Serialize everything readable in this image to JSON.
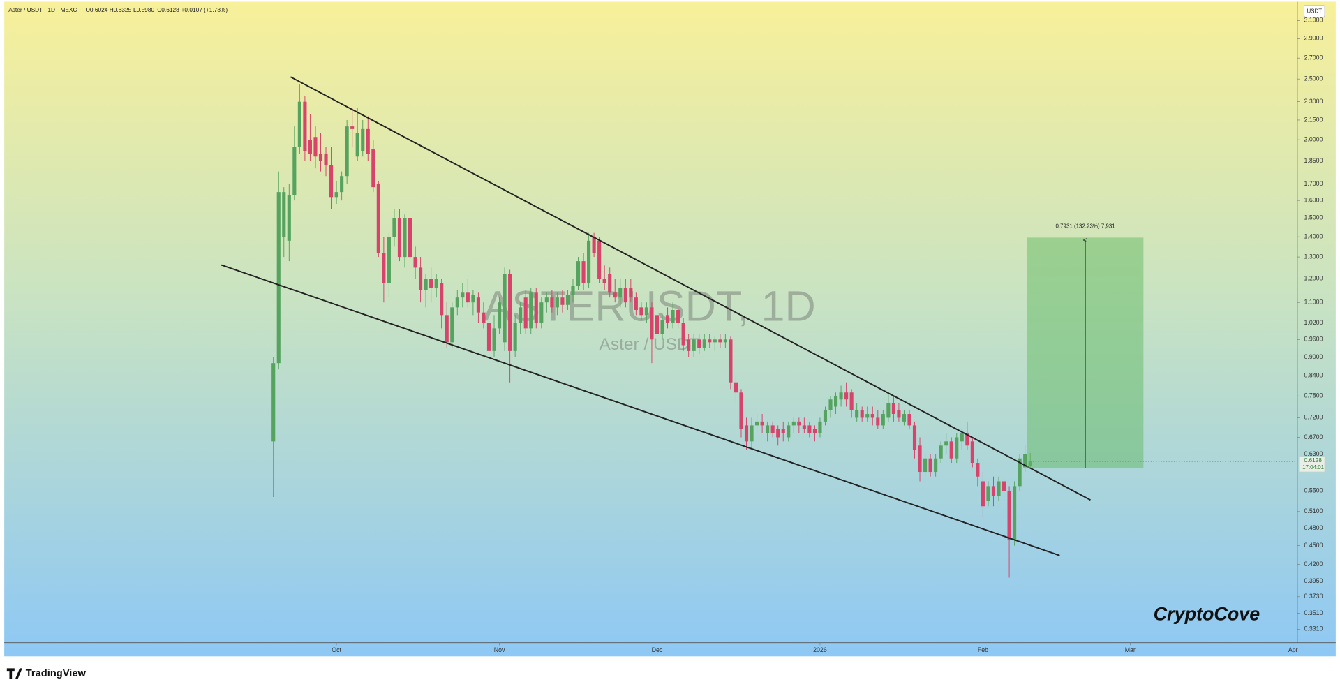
{
  "header": {
    "symbol": "Aster / USDT · 1D · MEXC",
    "open": "O0.6024",
    "high": "H0.6325",
    "low": "L0.5980",
    "close": "C0.6128",
    "change": "+0.0107 (+1.78%)"
  },
  "currency": "USDT",
  "last_price_label": "0.6128",
  "countdown": "17:04:01",
  "measure_label": "0.7931 (132.23%) 7,931",
  "brand": "CryptoCove",
  "footer": "TradingView",
  "chart_data": {
    "type": "candlestick",
    "title": "ASTERUSDT, 1D",
    "subtitle": "Aster / USDT",
    "up_color": "#55a35f",
    "down_color": "#d8436b",
    "log_scale": true,
    "grid": false,
    "xlim": [
      -51.2,
      194.8
    ],
    "xticks": [
      {
        "value": 12,
        "label": "Oct"
      },
      {
        "value": 43,
        "label": "Nov"
      },
      {
        "value": 73,
        "label": "Dec"
      },
      {
        "value": 104,
        "label": "2026"
      },
      {
        "value": 135,
        "label": "Feb"
      },
      {
        "value": 163,
        "label": "Mar"
      },
      {
        "value": 194,
        "label": "Apr"
      }
    ],
    "ylim": [
      0.315,
      3.29
    ],
    "yticks": [
      {
        "value": 3.1,
        "label": "3.1000"
      },
      {
        "value": 2.9,
        "label": "2.9000"
      },
      {
        "value": 2.7,
        "label": "2.7000"
      },
      {
        "value": 2.5,
        "label": "2.5000"
      },
      {
        "value": 2.3,
        "label": "2.3000"
      },
      {
        "value": 2.15,
        "label": "2.1500"
      },
      {
        "value": 2,
        "label": "2.0000"
      },
      {
        "value": 1.85,
        "label": "1.8500"
      },
      {
        "value": 1.7,
        "label": "1.7000"
      },
      {
        "value": 1.6,
        "label": "1.6000"
      },
      {
        "value": 1.5,
        "label": "1.5000"
      },
      {
        "value": 1.4,
        "label": "1.4000"
      },
      {
        "value": 1.3,
        "label": "1.3000"
      },
      {
        "value": 1.2,
        "label": "1.2000"
      },
      {
        "value": 1.1,
        "label": "1.1000"
      },
      {
        "value": 1.02,
        "label": "1.0200"
      },
      {
        "value": 0.96,
        "label": "0.9600"
      },
      {
        "value": 0.9,
        "label": "0.9000"
      },
      {
        "value": 0.84,
        "label": "0.8400"
      },
      {
        "value": 0.78,
        "label": "0.7800"
      },
      {
        "value": 0.72,
        "label": "0.7200"
      },
      {
        "value": 0.67,
        "label": "0.6700"
      },
      {
        "value": 0.63,
        "label": "0.6300"
      },
      {
        "value": 0.55,
        "label": "0.5500"
      },
      {
        "value": 0.51,
        "label": "0.5100"
      },
      {
        "value": 0.48,
        "label": "0.4800"
      },
      {
        "value": 0.45,
        "label": "0.4500"
      },
      {
        "value": 0.42,
        "label": "0.4200"
      },
      {
        "value": 0.395,
        "label": "0.3950"
      },
      {
        "value": 0.373,
        "label": "0.3730"
      },
      {
        "value": 0.351,
        "label": "0.3510"
      },
      {
        "value": 0.331,
        "label": "0.3310"
      }
    ],
    "open": [
      0.66,
      0.88,
      1.4,
      1.38,
      1.63,
      1.95,
      2.3,
      2.0,
      2.02,
      1.9,
      1.9,
      1.82,
      1.62,
      1.65,
      1.75,
      2.1,
      1.88,
      1.92,
      2.08,
      1.93,
      1.7,
      1.32,
      1.18,
      1.4,
      1.5,
      1.3,
      1.5,
      1.3,
      1.25,
      1.15,
      1.2,
      1.16,
      1.18,
      1.05,
      0.95,
      1.08,
      1.12,
      1.14,
      1.1,
      1.12,
      1.06,
      1.02,
      0.92,
      1.0,
      0.95,
      1.22,
      0.92,
      1.02,
      1.12,
      1.0,
      1.14,
      1.02,
      1.1,
      1.12,
      1.08,
      1.12,
      1.09,
      1.13,
      1.17,
      1.28,
      1.18,
      1.4,
      1.38,
      1.2,
      1.22,
      1.14,
      1.12,
      1.16,
      1.16,
      1.12,
      1.08,
      1.05,
      1.08,
      1.05,
      0.98,
      1.05,
      1.02,
      1.07,
      1.02,
      0.96,
      0.92,
      0.96,
      0.93,
      0.96,
      0.95,
      0.96,
      0.95,
      0.96,
      0.82,
      0.79,
      0.7,
      0.66,
      0.7,
      0.71,
      0.68,
      0.7,
      0.69,
      0.69,
      0.67,
      0.7,
      0.71,
      0.7,
      0.7,
      0.69,
      0.68,
      0.71,
      0.74,
      0.75,
      0.77,
      0.79,
      0.79,
      0.72,
      0.74,
      0.72,
      0.73,
      0.72,
      0.7,
      0.72,
      0.76,
      0.74,
      0.71,
      0.73,
      0.7,
      0.65,
      0.59,
      0.62,
      0.59,
      0.62,
      0.65,
      0.66,
      0.62,
      0.66,
      0.68,
      0.66,
      0.61,
      0.57,
      0.53,
      0.56,
      0.54,
      0.57,
      0.55,
      0.46,
      0.56,
      0.6,
      0.6024
    ],
    "high": [
      0.9,
      1.78,
      1.68,
      1.7,
      2.1,
      2.45,
      2.35,
      2.2,
      2.1,
      2.05,
      1.95,
      1.95,
      1.72,
      1.78,
      2.15,
      2.25,
      2.25,
      2.15,
      2.18,
      2.0,
      1.72,
      1.4,
      1.42,
      1.55,
      1.55,
      1.52,
      1.52,
      1.35,
      1.3,
      1.22,
      1.25,
      1.22,
      1.2,
      1.1,
      1.1,
      1.15,
      1.18,
      1.2,
      1.15,
      1.14,
      1.1,
      1.04,
      1.05,
      1.12,
      1.25,
      1.24,
      1.05,
      1.1,
      1.15,
      1.16,
      1.16,
      1.12,
      1.14,
      1.15,
      1.14,
      1.15,
      1.15,
      1.2,
      1.3,
      1.32,
      1.42,
      1.42,
      1.4,
      1.26,
      1.25,
      1.2,
      1.2,
      1.2,
      1.2,
      1.14,
      1.1,
      1.1,
      1.1,
      1.08,
      1.05,
      1.08,
      1.1,
      1.09,
      1.04,
      0.98,
      0.98,
      0.98,
      0.98,
      0.98,
      0.97,
      0.98,
      0.98,
      0.97,
      0.84,
      0.8,
      0.72,
      0.72,
      0.73,
      0.73,
      0.71,
      0.71,
      0.7,
      0.71,
      0.71,
      0.72,
      0.72,
      0.72,
      0.71,
      0.7,
      0.72,
      0.75,
      0.78,
      0.79,
      0.81,
      0.82,
      0.8,
      0.76,
      0.75,
      0.75,
      0.75,
      0.74,
      0.74,
      0.79,
      0.78,
      0.76,
      0.74,
      0.74,
      0.71,
      0.67,
      0.63,
      0.63,
      0.63,
      0.66,
      0.68,
      0.67,
      0.68,
      0.69,
      0.71,
      0.67,
      0.62,
      0.59,
      0.57,
      0.58,
      0.58,
      0.58,
      0.56,
      0.57,
      0.63,
      0.65,
      0.6325
    ],
    "low": [
      0.538,
      0.86,
      1.3,
      1.28,
      1.6,
      1.9,
      1.85,
      1.85,
      1.8,
      1.78,
      1.75,
      1.55,
      1.58,
      1.6,
      1.7,
      1.95,
      1.85,
      1.88,
      1.85,
      1.65,
      1.3,
      1.1,
      1.12,
      1.35,
      1.28,
      1.25,
      1.28,
      1.2,
      1.1,
      1.08,
      1.1,
      1.12,
      1.0,
      0.93,
      0.93,
      1.05,
      1.08,
      1.08,
      1.05,
      1.02,
      1.0,
      0.86,
      0.9,
      0.98,
      0.92,
      0.82,
      0.9,
      0.98,
      0.98,
      0.98,
      1.0,
      1.0,
      1.06,
      1.06,
      1.05,
      1.06,
      1.07,
      1.1,
      1.15,
      1.15,
      1.16,
      1.3,
      1.18,
      1.15,
      1.12,
      1.1,
      1.08,
      1.08,
      1.1,
      1.05,
      1.03,
      1.02,
      0.88,
      0.95,
      0.96,
      1.0,
      1.0,
      1.0,
      0.92,
      0.9,
      0.9,
      0.91,
      0.92,
      0.93,
      0.92,
      0.93,
      0.93,
      0.8,
      0.76,
      0.67,
      0.64,
      0.64,
      0.68,
      0.68,
      0.66,
      0.67,
      0.65,
      0.66,
      0.66,
      0.68,
      0.68,
      0.68,
      0.67,
      0.66,
      0.67,
      0.7,
      0.72,
      0.73,
      0.75,
      0.75,
      0.72,
      0.71,
      0.71,
      0.71,
      0.7,
      0.69,
      0.69,
      0.71,
      0.71,
      0.71,
      0.7,
      0.69,
      0.62,
      0.57,
      0.58,
      0.58,
      0.58,
      0.61,
      0.63,
      0.61,
      0.61,
      0.64,
      0.64,
      0.6,
      0.56,
      0.5,
      0.52,
      0.52,
      0.53,
      0.53,
      0.4,
      0.45,
      0.55,
      0.59,
      0.598
    ],
    "close": [
      0.88,
      1.65,
      1.65,
      1.63,
      1.95,
      2.3,
      1.92,
      1.9,
      1.88,
      1.85,
      1.82,
      1.62,
      1.65,
      1.75,
      2.1,
      2.08,
      2.05,
      2.08,
      1.9,
      1.68,
      1.32,
      1.18,
      1.4,
      1.5,
      1.3,
      1.5,
      1.3,
      1.25,
      1.15,
      1.2,
      1.16,
      1.2,
      1.05,
      0.95,
      1.08,
      1.12,
      1.14,
      1.1,
      1.13,
      1.06,
      1.02,
      0.92,
      1.0,
      1.1,
      1.22,
      0.92,
      1.02,
      1.08,
      1.0,
      1.14,
      1.02,
      1.1,
      1.12,
      1.08,
      1.12,
      1.09,
      1.13,
      1.17,
      1.28,
      1.18,
      1.38,
      1.32,
      1.2,
      1.18,
      1.14,
      1.12,
      1.16,
      1.1,
      1.12,
      1.07,
      1.05,
      1.08,
      0.96,
      0.98,
      1.03,
      1.02,
      1.07,
      1.02,
      0.94,
      0.92,
      0.96,
      0.93,
      0.96,
      0.95,
      0.96,
      0.95,
      0.96,
      0.82,
      0.79,
      0.69,
      0.66,
      0.7,
      0.71,
      0.7,
      0.7,
      0.68,
      0.67,
      0.68,
      0.7,
      0.71,
      0.7,
      0.69,
      0.68,
      0.68,
      0.71,
      0.74,
      0.77,
      0.78,
      0.79,
      0.77,
      0.74,
      0.74,
      0.72,
      0.73,
      0.72,
      0.7,
      0.73,
      0.76,
      0.73,
      0.72,
      0.73,
      0.7,
      0.64,
      0.59,
      0.62,
      0.59,
      0.62,
      0.65,
      0.66,
      0.62,
      0.67,
      0.68,
      0.65,
      0.61,
      0.58,
      0.52,
      0.56,
      0.54,
      0.57,
      0.55,
      0.46,
      0.56,
      0.62,
      0.63,
      0.6128
    ]
  }
}
